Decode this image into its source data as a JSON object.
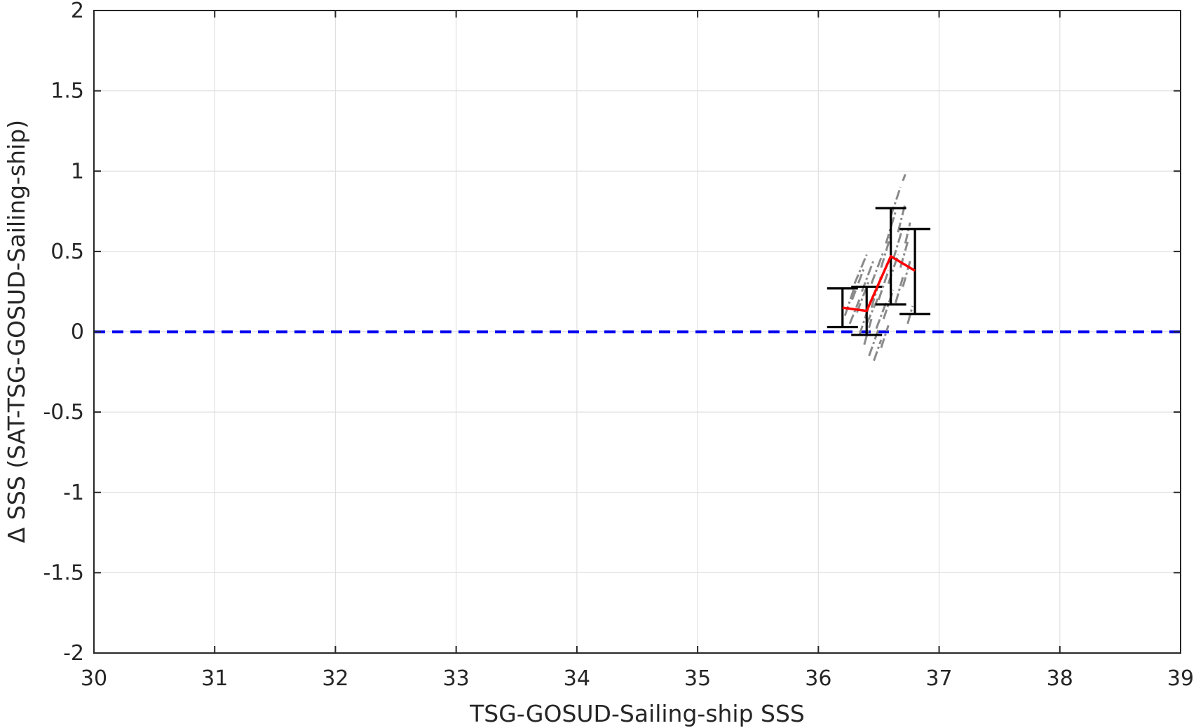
{
  "chart_data": {
    "type": "scatter",
    "title": "",
    "xlabel": "TSG-GOSUD-Sailing-ship SSS",
    "ylabel": "Δ SSS (SAT-TSG-GOSUD-Sailing-ship)",
    "xlim": [
      30,
      39
    ],
    "ylim": [
      -2,
      2
    ],
    "xticks": [
      30,
      31,
      32,
      33,
      34,
      35,
      36,
      37,
      38,
      39
    ],
    "yticks": [
      -2,
      -1.5,
      -1,
      -0.5,
      0,
      0.5,
      1,
      1.5,
      2
    ],
    "xtick_labels": [
      "30",
      "31",
      "32",
      "33",
      "34",
      "35",
      "36",
      "37",
      "38",
      "39"
    ],
    "ytick_labels": [
      "-2",
      "-1.5",
      "-1",
      "-0.5",
      "0",
      "0.5",
      "1",
      "1.5",
      "2"
    ],
    "grid": true,
    "reference_line": {
      "y": 0,
      "style": "dashed",
      "color": "#0000ee"
    },
    "binned_mean": {
      "color": "#ff0000",
      "x": [
        36.2,
        36.4,
        36.6,
        36.8
      ],
      "y": [
        0.15,
        0.13,
        0.47,
        0.38
      ]
    },
    "error_bars": {
      "color": "#000000",
      "x": [
        36.2,
        36.4,
        36.6,
        36.8
      ],
      "lower": [
        0.03,
        -0.02,
        0.17,
        0.11
      ],
      "upper": [
        0.27,
        0.28,
        0.77,
        0.64
      ]
    },
    "scatter_segments": {
      "color": "#8a8a8a",
      "points": [
        {
          "x": [
            36.22,
            36.3
          ],
          "y": [
            0.1,
            0.28
          ]
        },
        {
          "x": [
            36.26,
            36.34
          ],
          "y": [
            0.05,
            0.2
          ]
        },
        {
          "x": [
            36.28,
            36.38
          ],
          "y": [
            0.2,
            0.4
          ]
        },
        {
          "x": [
            36.3,
            36.4
          ],
          "y": [
            0.3,
            0.48
          ]
        },
        {
          "x": [
            36.32,
            36.42
          ],
          "y": [
            0.12,
            0.32
          ]
        },
        {
          "x": [
            36.34,
            36.42
          ],
          "y": [
            -0.02,
            0.16
          ]
        },
        {
          "x": [
            36.36,
            36.46
          ],
          "y": [
            0.25,
            0.45
          ]
        },
        {
          "x": [
            36.38,
            36.44
          ],
          "y": [
            -0.08,
            0.08
          ]
        },
        {
          "x": [
            36.4,
            36.5
          ],
          "y": [
            0.05,
            0.22
          ]
        },
        {
          "x": [
            36.42,
            36.5
          ],
          "y": [
            -0.15,
            0.02
          ]
        },
        {
          "x": [
            36.44,
            36.52
          ],
          "y": [
            0.15,
            0.35
          ]
        },
        {
          "x": [
            36.44,
            36.54
          ],
          "y": [
            0.3,
            0.5
          ]
        },
        {
          "x": [
            36.46,
            36.52
          ],
          "y": [
            -0.18,
            -0.05
          ]
        },
        {
          "x": [
            36.48,
            36.56
          ],
          "y": [
            0.02,
            0.18
          ]
        },
        {
          "x": [
            36.5,
            36.58
          ],
          "y": [
            0.2,
            0.38
          ]
        },
        {
          "x": [
            36.52,
            36.6
          ],
          "y": [
            0.4,
            0.6
          ]
        },
        {
          "x": [
            36.52,
            36.58
          ],
          "y": [
            -0.1,
            0.04
          ]
        },
        {
          "x": [
            36.54,
            36.62
          ],
          "y": [
            0.08,
            0.26
          ]
        },
        {
          "x": [
            36.56,
            36.64
          ],
          "y": [
            0.55,
            0.75
          ]
        },
        {
          "x": [
            36.58,
            36.66
          ],
          "y": [
            0.3,
            0.48
          ]
        },
        {
          "x": [
            36.6,
            36.68
          ],
          "y": [
            0.72,
            0.9
          ]
        },
        {
          "x": [
            36.62,
            36.7
          ],
          "y": [
            0.45,
            0.65
          ]
        },
        {
          "x": [
            36.64,
            36.7
          ],
          "y": [
            0.18,
            0.34
          ]
        },
        {
          "x": [
            36.66,
            36.72
          ],
          "y": [
            0.62,
            0.8
          ]
        },
        {
          "x": [
            36.68,
            36.74
          ],
          "y": [
            0.4,
            0.56
          ]
        },
        {
          "x": [
            36.7,
            36.76
          ],
          "y": [
            0.28,
            0.44
          ]
        },
        {
          "x": [
            36.72,
            36.76
          ],
          "y": [
            0.55,
            0.68
          ]
        },
        {
          "x": [
            36.7,
            36.72
          ],
          "y": [
            0.94,
            0.98
          ]
        },
        {
          "x": [
            36.74,
            36.78
          ],
          "y": [
            0.05,
            0.16
          ]
        }
      ]
    }
  }
}
